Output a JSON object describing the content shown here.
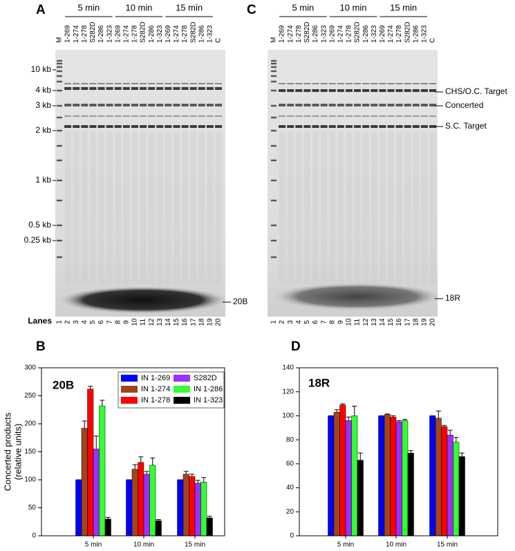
{
  "gels": [
    {
      "panel": "A",
      "time_labels": [
        "5 min",
        "10 min",
        "15 min"
      ],
      "lane_names": [
        "M",
        "1-269",
        "1-274",
        "1-278",
        "S282D",
        "1-286",
        "1-323",
        "1-269",
        "1-274",
        "1-278",
        "S282D",
        "1-286",
        "1-323",
        "1-269",
        "1-274",
        "1-278",
        "S282D",
        "1-286",
        "1-323",
        "C"
      ],
      "lane_numbers": [
        1,
        2,
        3,
        4,
        5,
        6,
        7,
        8,
        9,
        10,
        11,
        12,
        13,
        14,
        15,
        16,
        17,
        18,
        19,
        20
      ],
      "lanes_label": "Lanes",
      "size_markers": [
        "10 kb",
        "4 kb",
        "3 kb",
        "2 kb",
        "1 kb",
        "0.5 kb",
        "0.25 kb"
      ],
      "band_labels": [
        "20B"
      ]
    },
    {
      "panel": "C",
      "time_labels": [
        "5 min",
        "10 min",
        "15 min"
      ],
      "lane_names": [
        "M",
        "1-269",
        "1-274",
        "1-278",
        "S282D",
        "1-286",
        "1-323",
        "1-269",
        "1-274",
        "1-278",
        "S282D",
        "1-286",
        "1-323",
        "1-269",
        "1-274",
        "1-278",
        "S282D",
        "1-286",
        "1-323",
        "C"
      ],
      "lane_numbers": [
        1,
        2,
        3,
        4,
        5,
        6,
        7,
        8,
        9,
        10,
        11,
        12,
        13,
        14,
        15,
        16,
        17,
        18,
        19,
        20
      ],
      "band_labels": [
        "CHS/O.C. Target",
        "Concerted",
        "S.C. Target",
        "18R"
      ]
    }
  ],
  "chart_data": [
    {
      "type": "bar",
      "panel": "B",
      "label": "20B",
      "ylabel": [
        "Concerted products",
        "(relative units)"
      ],
      "categories": [
        "5 min",
        "10 min",
        "15 min"
      ],
      "series": [
        {
          "name": "IN 1-269",
          "color": "#0000ff",
          "values": [
            100,
            100,
            100
          ],
          "errors": [
            0,
            0,
            0
          ]
        },
        {
          "name": "IN 1-274",
          "color": "#a0461e",
          "values": [
            192,
            119,
            110
          ],
          "errors": [
            13,
            8,
            5
          ]
        },
        {
          "name": "IN 1-278",
          "color": "#ff0000",
          "values": [
            262,
            131,
            106
          ],
          "errors": [
            5,
            10,
            4
          ]
        },
        {
          "name": "S282D",
          "color": "#9b30ff",
          "values": [
            155,
            110,
            94
          ],
          "errors": [
            23,
            5,
            5
          ]
        },
        {
          "name": "IN 1-286",
          "color": "#33ff33",
          "values": [
            232,
            126,
            96
          ],
          "errors": [
            10,
            13,
            8
          ]
        },
        {
          "name": "IN 1-323",
          "color": "#000000",
          "values": [
            30,
            27,
            32
          ],
          "errors": [
            3,
            2,
            3
          ]
        }
      ],
      "ylim": [
        0,
        300
      ],
      "yticks": [
        0,
        50,
        100,
        150,
        200,
        250,
        300
      ],
      "legend": true
    },
    {
      "type": "bar",
      "panel": "D",
      "label": "18R",
      "categories": [
        "5 min",
        "10 min",
        "15 min"
      ],
      "series": [
        {
          "color": "#0000ff",
          "values": [
            100,
            100,
            100
          ],
          "errors": [
            0,
            0,
            0
          ]
        },
        {
          "color": "#a0461e",
          "values": [
            103,
            101,
            98
          ],
          "errors": [
            2,
            0.5,
            6
          ]
        },
        {
          "color": "#ff0000",
          "values": [
            109,
            99,
            91
          ],
          "errors": [
            1,
            1,
            1
          ]
        },
        {
          "color": "#9b30ff",
          "values": [
            96,
            95,
            84
          ],
          "errors": [
            3,
            1,
            4
          ]
        },
        {
          "color": "#33ff33",
          "values": [
            100,
            96,
            78
          ],
          "errors": [
            8,
            1,
            4
          ]
        },
        {
          "color": "#000000",
          "values": [
            63,
            69,
            66
          ],
          "errors": [
            6,
            2,
            3
          ]
        }
      ],
      "ylim": [
        0,
        140
      ],
      "yticks": [
        0,
        20,
        40,
        60,
        80,
        100,
        120,
        140
      ],
      "legend": false
    }
  ]
}
